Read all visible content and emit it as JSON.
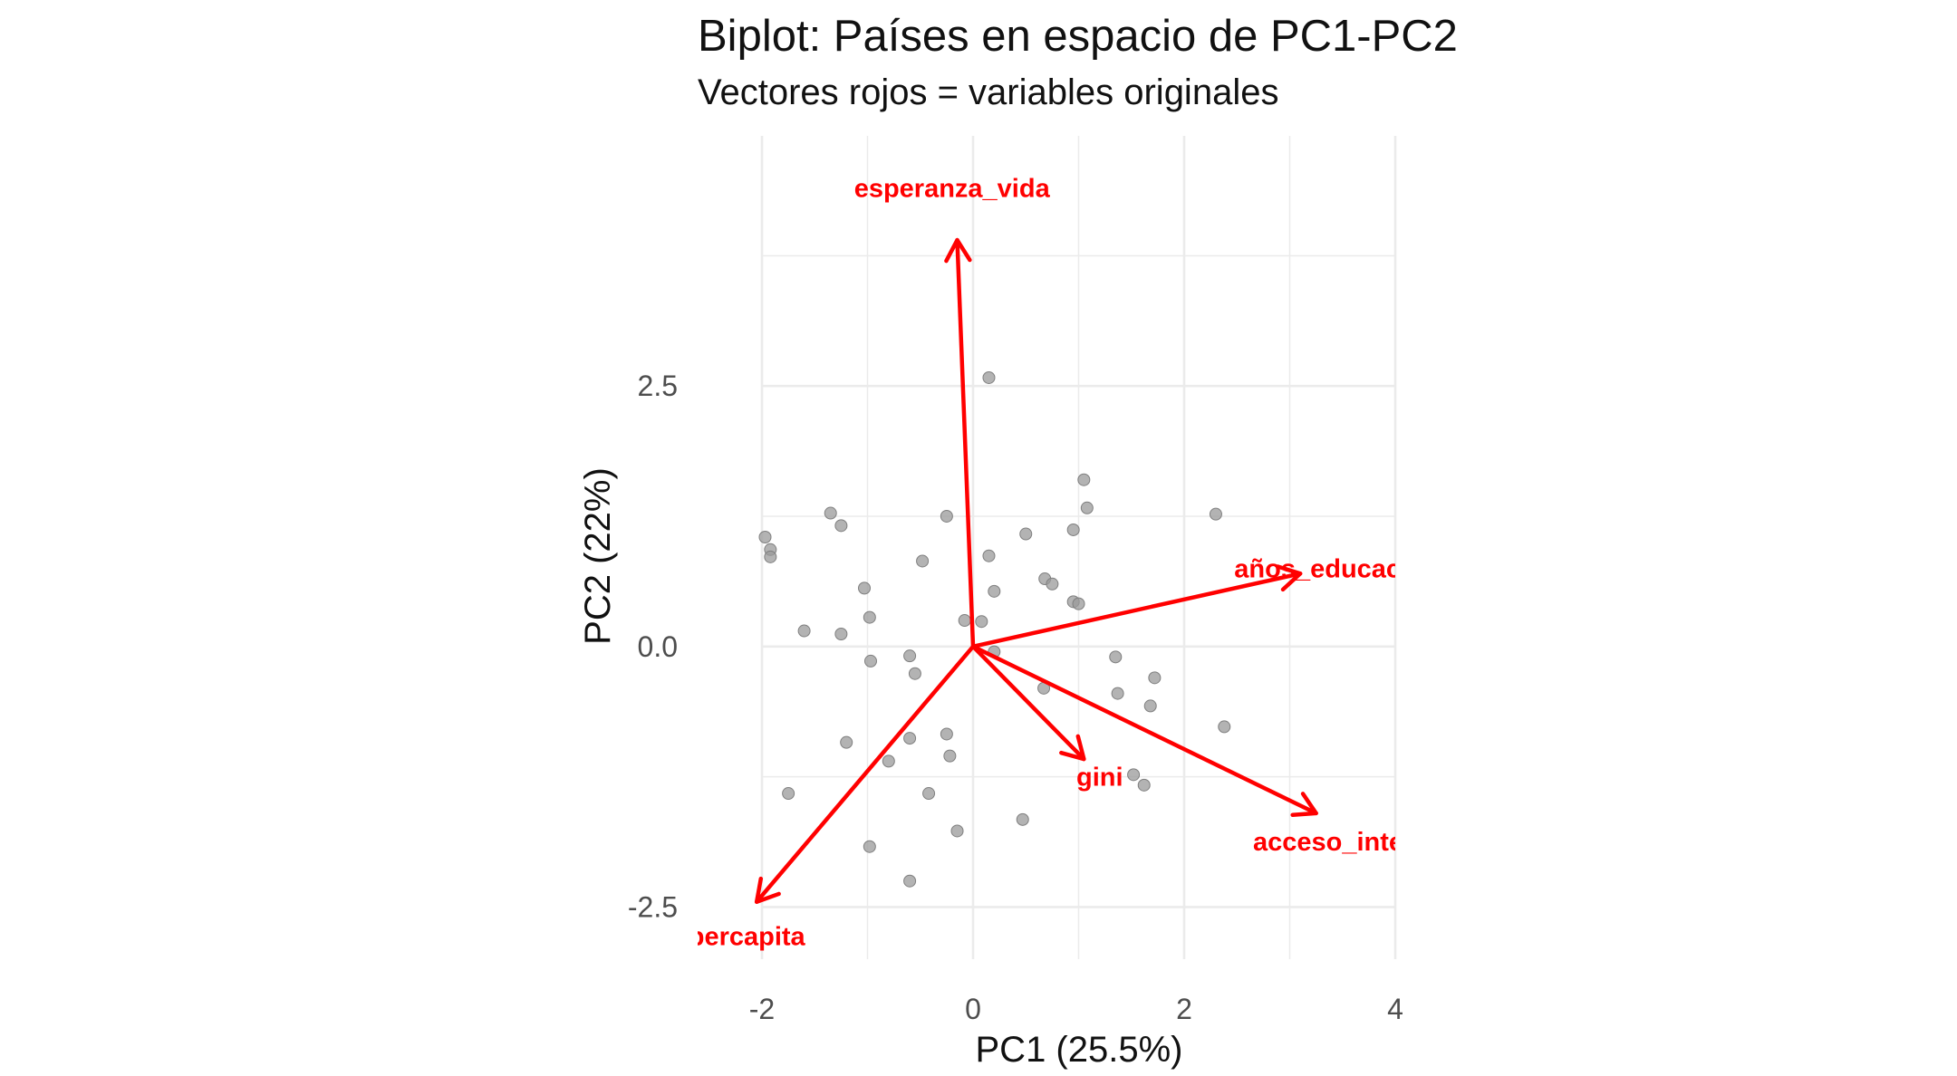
{
  "chart_data": {
    "type": "scatter",
    "title": "Biplot: Países en espacio de PC1-PC2",
    "subtitle": "Vectores rojos = variables originales",
    "xlabel": "PC1 (25.5%)",
    "ylabel": "PC2 (22%)",
    "xlim": [
      -2.0,
      4.0
    ],
    "ylim": [
      -3.0,
      4.9
    ],
    "x_ticks": [
      -2,
      0,
      2,
      4
    ],
    "x_tick_labels": [
      "-2",
      "0",
      "2",
      "4"
    ],
    "y_ticks": [
      -2.5,
      0.0,
      2.5
    ],
    "y_tick_labels": [
      "-2.5",
      "0.0",
      "2.5"
    ],
    "grid": true,
    "points_color": "#999999",
    "vector_color": "#ff0000",
    "points": [
      {
        "x": 0.15,
        "y": 2.58
      },
      {
        "x": 1.05,
        "y": 1.6
      },
      {
        "x": 1.08,
        "y": 1.33
      },
      {
        "x": 2.3,
        "y": 1.27
      },
      {
        "x": 0.95,
        "y": 1.12
      },
      {
        "x": 0.5,
        "y": 1.08
      },
      {
        "x": -1.35,
        "y": 1.28
      },
      {
        "x": -1.25,
        "y": 1.16
      },
      {
        "x": -0.25,
        "y": 1.25
      },
      {
        "x": -1.97,
        "y": 1.05
      },
      {
        "x": -1.92,
        "y": 0.93
      },
      {
        "x": -1.92,
        "y": 0.86
      },
      {
        "x": -0.48,
        "y": 0.82
      },
      {
        "x": 0.15,
        "y": 0.87
      },
      {
        "x": 0.68,
        "y": 0.65
      },
      {
        "x": 0.75,
        "y": 0.6
      },
      {
        "x": 0.2,
        "y": 0.53
      },
      {
        "x": -1.03,
        "y": 0.56
      },
      {
        "x": 0.95,
        "y": 0.43
      },
      {
        "x": 1.0,
        "y": 0.41
      },
      {
        "x": -0.98,
        "y": 0.28
      },
      {
        "x": -0.08,
        "y": 0.25
      },
      {
        "x": 0.08,
        "y": 0.24
      },
      {
        "x": -1.6,
        "y": 0.15
      },
      {
        "x": -1.25,
        "y": 0.12
      },
      {
        "x": 0.2,
        "y": -0.05
      },
      {
        "x": -0.6,
        "y": -0.09
      },
      {
        "x": -0.97,
        "y": -0.14
      },
      {
        "x": -0.55,
        "y": -0.26
      },
      {
        "x": 1.35,
        "y": -0.1
      },
      {
        "x": 1.72,
        "y": -0.3
      },
      {
        "x": 0.67,
        "y": -0.4
      },
      {
        "x": 1.37,
        "y": -0.45
      },
      {
        "x": 1.68,
        "y": -0.57
      },
      {
        "x": 2.38,
        "y": -0.77
      },
      {
        "x": -0.25,
        "y": -0.84
      },
      {
        "x": -0.6,
        "y": -0.88
      },
      {
        "x": -1.2,
        "y": -0.92
      },
      {
        "x": -0.8,
        "y": -1.1
      },
      {
        "x": -0.22,
        "y": -1.05
      },
      {
        "x": 1.52,
        "y": -1.23
      },
      {
        "x": 1.62,
        "y": -1.33
      },
      {
        "x": -1.75,
        "y": -1.41
      },
      {
        "x": -0.42,
        "y": -1.41
      },
      {
        "x": 0.47,
        "y": -1.66
      },
      {
        "x": -0.15,
        "y": -1.77
      },
      {
        "x": -0.98,
        "y": -1.92
      },
      {
        "x": -0.6,
        "y": -2.25
      }
    ],
    "vectors": [
      {
        "name": "esperanza_vida",
        "x": -0.15,
        "y": 3.9,
        "label_x": -0.2,
        "label_y": 4.4
      },
      {
        "name": "años_educación",
        "x": 3.1,
        "y": 0.7,
        "label_x": 3.45,
        "label_y": 0.75
      },
      {
        "name": "gini",
        "x": 1.05,
        "y": -1.08,
        "label_x": 1.2,
        "label_y": -1.25
      },
      {
        "name": "acceso_internet",
        "x": 3.25,
        "y": -1.6,
        "label_x": 3.6,
        "label_y": -1.87
      },
      {
        "name": "pib_percapita",
        "x": -2.05,
        "y": -2.45,
        "label_x": -2.4,
        "label_y": -2.78
      }
    ]
  }
}
